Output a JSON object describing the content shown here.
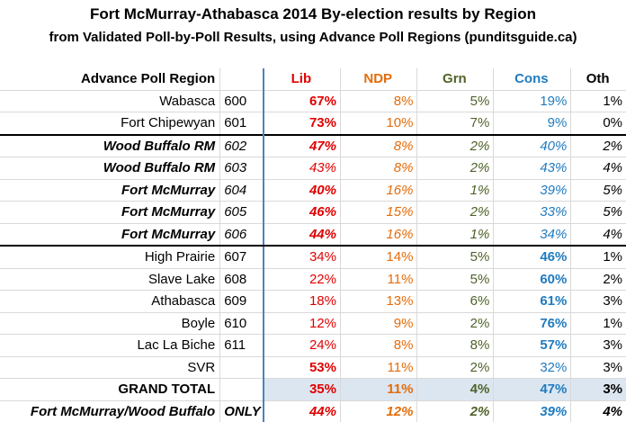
{
  "title": "Fort McMurray-Athabasca 2014 By-election results by Region",
  "subtitle": "from Validated Poll-by-Poll Results, using Advance Poll Regions (punditsguide.ca)",
  "header": {
    "region": "Advance Poll Region",
    "lib": "Lib",
    "ndp": "NDP",
    "grn": "Grn",
    "cons": "Cons",
    "oth": "Oth"
  },
  "rows": [
    {
      "region": "Wabasca",
      "poll": "600",
      "lib": "67%",
      "ndp": "8%",
      "grn": "5%",
      "cons": "19%",
      "oth": "1%"
    },
    {
      "region": "Fort Chipewyan",
      "poll": "601",
      "lib": "73%",
      "ndp": "10%",
      "grn": "7%",
      "cons": "9%",
      "oth": "0%"
    },
    {
      "region": "Wood Buffalo RM",
      "poll": "602",
      "lib": "47%",
      "ndp": "8%",
      "grn": "2%",
      "cons": "40%",
      "oth": "2%"
    },
    {
      "region": "Wood Buffalo RM",
      "poll": "603",
      "lib": "43%",
      "ndp": "8%",
      "grn": "2%",
      "cons": "43%",
      "oth": "4%"
    },
    {
      "region": "Fort McMurray",
      "poll": "604",
      "lib": "40%",
      "ndp": "16%",
      "grn": "1%",
      "cons": "39%",
      "oth": "5%"
    },
    {
      "region": "Fort McMurray",
      "poll": "605",
      "lib": "46%",
      "ndp": "15%",
      "grn": "2%",
      "cons": "33%",
      "oth": "5%"
    },
    {
      "region": "Fort McMurray",
      "poll": "606",
      "lib": "44%",
      "ndp": "16%",
      "grn": "1%",
      "cons": "34%",
      "oth": "4%"
    },
    {
      "region": "High Prairie",
      "poll": "607",
      "lib": "34%",
      "ndp": "14%",
      "grn": "5%",
      "cons": "46%",
      "oth": "1%"
    },
    {
      "region": "Slave Lake",
      "poll": "608",
      "lib": "22%",
      "ndp": "11%",
      "grn": "5%",
      "cons": "60%",
      "oth": "2%"
    },
    {
      "region": "Athabasca",
      "poll": "609",
      "lib": "18%",
      "ndp": "13%",
      "grn": "6%",
      "cons": "61%",
      "oth": "3%"
    },
    {
      "region": "Boyle",
      "poll": "610",
      "lib": "12%",
      "ndp": "9%",
      "grn": "2%",
      "cons": "76%",
      "oth": "1%"
    },
    {
      "region": "Lac La Biche",
      "poll": "611",
      "lib": "24%",
      "ndp": "8%",
      "grn": "8%",
      "cons": "57%",
      "oth": "3%"
    },
    {
      "region": "SVR",
      "poll": "",
      "lib": "53%",
      "ndp": "11%",
      "grn": "2%",
      "cons": "32%",
      "oth": "3%"
    }
  ],
  "grand_total": {
    "region": "GRAND TOTAL",
    "lib": "35%",
    "ndp": "11%",
    "grn": "4%",
    "cons": "47%",
    "oth": "3%"
  },
  "fmwb": {
    "region": "Fort McMurray/Wood Buffalo",
    "poll": "ONLY",
    "lib": "44%",
    "ndp": "12%",
    "grn": "2%",
    "cons": "39%",
    "oth": "4%"
  }
}
